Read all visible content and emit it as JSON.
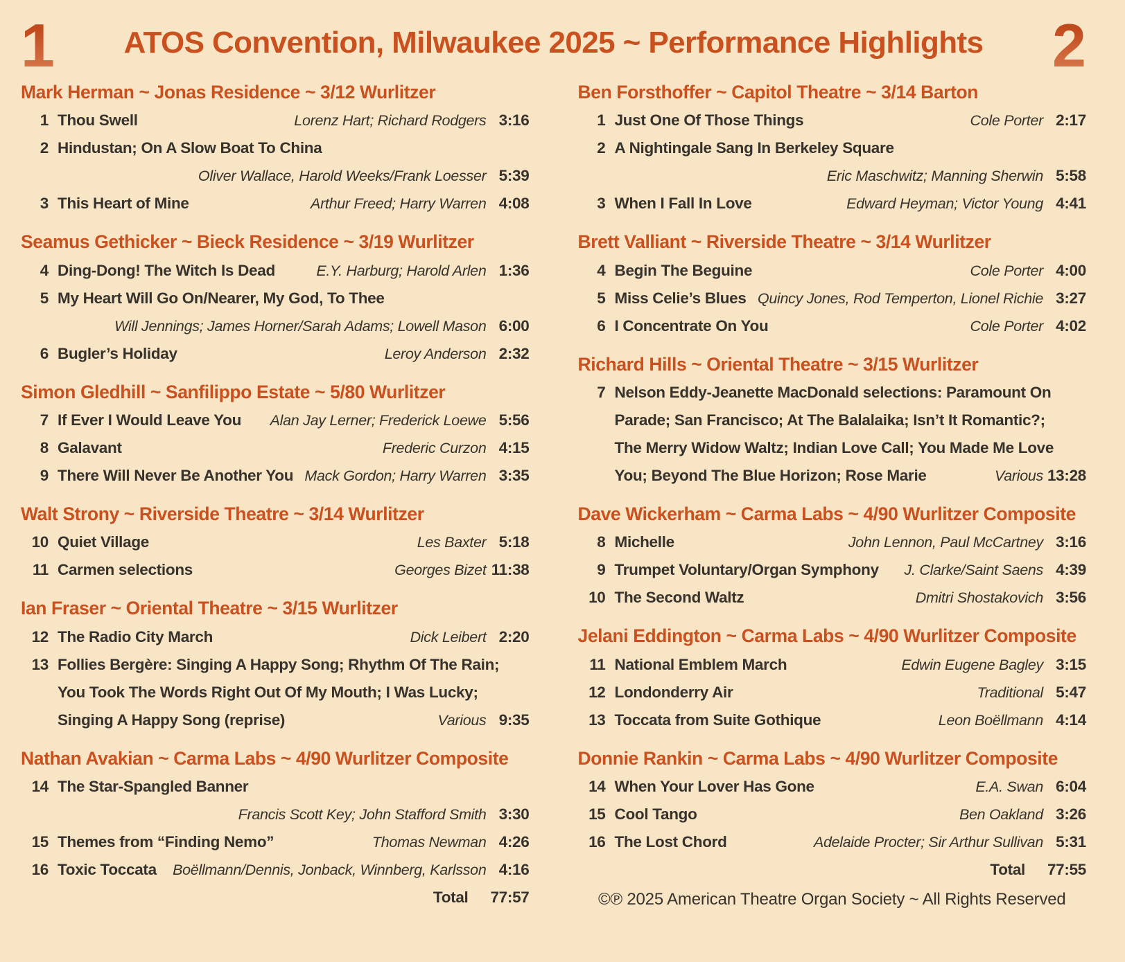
{
  "page": {
    "title": "ATOS Convention, Milwaukee 2025 ~ Performance Highlights",
    "disc1_number": "1",
    "disc2_number": "2",
    "footer": "©℗ 2025 American Theatre Organ Society ~ All Rights Reserved",
    "colors": {
      "background": "#f7e5c6",
      "accent_orange": "#c9511f",
      "text_dark": "#37322b"
    }
  },
  "discs": [
    {
      "total_label": "Total",
      "total_time": "77:57",
      "sections": [
        {
          "header": "Mark Herman ~ Jonas Residence ~ 3/12 Wurlitzer",
          "tracks": [
            {
              "num": "1",
              "title": "Thou Swell",
              "composer": "Lorenz Hart; Richard Rodgers",
              "time": "3:16"
            },
            {
              "num": "2",
              "title": "Hindustan; On A Slow Boat To China",
              "composer": "Oliver Wallace, Harold Weeks/Frank Loesser",
              "time": "5:39",
              "composer_own_line": true
            },
            {
              "num": "3",
              "title": "This Heart of Mine",
              "composer": "Arthur Freed; Harry Warren",
              "time": "4:08"
            }
          ]
        },
        {
          "header": "Seamus Gethicker ~ Bieck Residence ~ 3/19 Wurlitzer",
          "tracks": [
            {
              "num": "4",
              "title": "Ding-Dong! The Witch Is Dead",
              "composer": "E.Y. Harburg; Harold Arlen",
              "time": "1:36"
            },
            {
              "num": "5",
              "title": "My Heart Will Go On/Nearer, My God, To Thee",
              "composer": "Will Jennings; James Horner/Sarah Adams; Lowell Mason",
              "time": "6:00",
              "composer_own_line": true
            },
            {
              "num": "6",
              "title": "Bugler’s Holiday",
              "composer": "Leroy Anderson",
              "time": "2:32"
            }
          ]
        },
        {
          "header": "Simon Gledhill ~ Sanfilippo Estate ~ 5/80 Wurlitzer",
          "tracks": [
            {
              "num": "7",
              "title": "If Ever I Would Leave You",
              "composer": "Alan Jay Lerner; Frederick Loewe",
              "time": "5:56"
            },
            {
              "num": "8",
              "title": "Galavant",
              "composer": "Frederic Curzon",
              "time": "4:15"
            },
            {
              "num": "9",
              "title": "There Will Never Be Another You",
              "composer": "Mack Gordon; Harry Warren",
              "time": "3:35"
            }
          ]
        },
        {
          "header": "Walt Strony ~ Riverside Theatre ~ 3/14 Wurlitzer",
          "tracks": [
            {
              "num": "10",
              "title": "Quiet Village",
              "composer": "Les Baxter",
              "time": "5:18"
            },
            {
              "num": "11",
              "title": "Carmen selections",
              "composer": "Georges Bizet",
              "time": "11:38"
            }
          ]
        },
        {
          "header": "Ian Fraser ~ Oriental Theatre ~ 3/15 Wurlitzer",
          "tracks": [
            {
              "num": "12",
              "title": "The Radio City March",
              "composer": "Dick Leibert",
              "time": "2:20"
            },
            {
              "num": "13",
              "title_lines": [
                "Follies Bergère: Singing A Happy Song; Rhythm Of The Rain;",
                "You Took The Words Right Out Of My Mouth; I Was Lucky;",
                "Singing A Happy Song (reprise)"
              ],
              "composer": "Various",
              "time": "9:35"
            }
          ]
        },
        {
          "header": "Nathan Avakian ~ Carma Labs ~ 4/90 Wurlitzer Composite",
          "tracks": [
            {
              "num": "14",
              "title": "The Star-Spangled Banner",
              "composer": "Francis Scott Key; John Stafford Smith",
              "time": "3:30",
              "composer_own_line": true
            },
            {
              "num": "15",
              "title": "Themes from “Finding Nemo”",
              "composer": "Thomas Newman",
              "time": "4:26"
            },
            {
              "num": "16",
              "title": "Toxic Toccata",
              "composer": "Boëllmann/Dennis, Jonback, Winnberg, Karlsson",
              "time": "4:16"
            }
          ]
        }
      ]
    },
    {
      "total_label": "Total",
      "total_time": "77:55",
      "sections": [
        {
          "header": "Ben Forsthoffer ~ Capitol Theatre ~ 3/14 Barton",
          "tracks": [
            {
              "num": "1",
              "title": "Just One Of Those Things",
              "composer": "Cole Porter",
              "time": "2:17"
            },
            {
              "num": "2",
              "title": "A Nightingale Sang In Berkeley Square",
              "composer": "Eric Maschwitz; Manning Sherwin",
              "time": "5:58",
              "composer_own_line": true
            },
            {
              "num": "3",
              "title": "When I Fall In Love",
              "composer": "Edward Heyman; Victor Young",
              "time": "4:41"
            }
          ]
        },
        {
          "header": "Brett Valliant ~ Riverside Theatre ~ 3/14 Wurlitzer",
          "tracks": [
            {
              "num": "4",
              "title": "Begin The Beguine",
              "composer": "Cole Porter",
              "time": "4:00"
            },
            {
              "num": "5",
              "title": "Miss Celie’s Blues",
              "composer": "Quincy Jones, Rod Temperton, Lionel Richie",
              "time": "3:27"
            },
            {
              "num": "6",
              "title": "I Concentrate On You",
              "composer": "Cole Porter",
              "time": "4:02"
            }
          ]
        },
        {
          "header": "Richard Hills ~ Oriental Theatre ~ 3/15 Wurlitzer",
          "tracks": [
            {
              "num": "7",
              "title_lines": [
                "Nelson Eddy-Jeanette MacDonald selections: Paramount On",
                "Parade; San Francisco; At The Balalaika; Isn’t It Romantic?;",
                "The Merry Widow Waltz; Indian Love Call; You Made Me Love",
                "You; Beyond The Blue Horizon; Rose Marie"
              ],
              "composer": "Various",
              "time": "13:28"
            }
          ]
        },
        {
          "header": "Dave Wickerham ~ Carma Labs ~ 4/90 Wurlitzer Composite",
          "tracks": [
            {
              "num": "8",
              "title": "Michelle",
              "composer": "John Lennon, Paul McCartney",
              "time": "3:16"
            },
            {
              "num": "9",
              "title": "Trumpet Voluntary/Organ Symphony",
              "composer": "J. Clarke/Saint Saens",
              "time": "4:39"
            },
            {
              "num": "10",
              "title": "The Second Waltz",
              "composer": "Dmitri Shostakovich",
              "time": "3:56"
            }
          ]
        },
        {
          "header": "Jelani Eddington ~ Carma Labs ~ 4/90 Wurlitzer Composite",
          "tracks": [
            {
              "num": "11",
              "title": "National Emblem March",
              "composer": "Edwin Eugene Bagley",
              "time": "3:15"
            },
            {
              "num": "12",
              "title": "Londonderry Air",
              "composer": "Traditional",
              "time": "5:47"
            },
            {
              "num": "13",
              "title": "Toccata from Suite Gothique",
              "composer": "Leon Boëllmann",
              "time": "4:14"
            }
          ]
        },
        {
          "header": "Donnie Rankin ~ Carma Labs ~ 4/90 Wurlitzer Composite",
          "tracks": [
            {
              "num": "14",
              "title": "When Your Lover Has Gone",
              "composer": "E.A. Swan",
              "time": "6:04"
            },
            {
              "num": "15",
              "title": "Cool Tango",
              "composer": "Ben Oakland",
              "time": "3:26"
            },
            {
              "num": "16",
              "title": "The Lost Chord",
              "composer": "Adelaide Procter; Sir Arthur Sullivan",
              "time": "5:31"
            }
          ]
        }
      ]
    }
  ]
}
